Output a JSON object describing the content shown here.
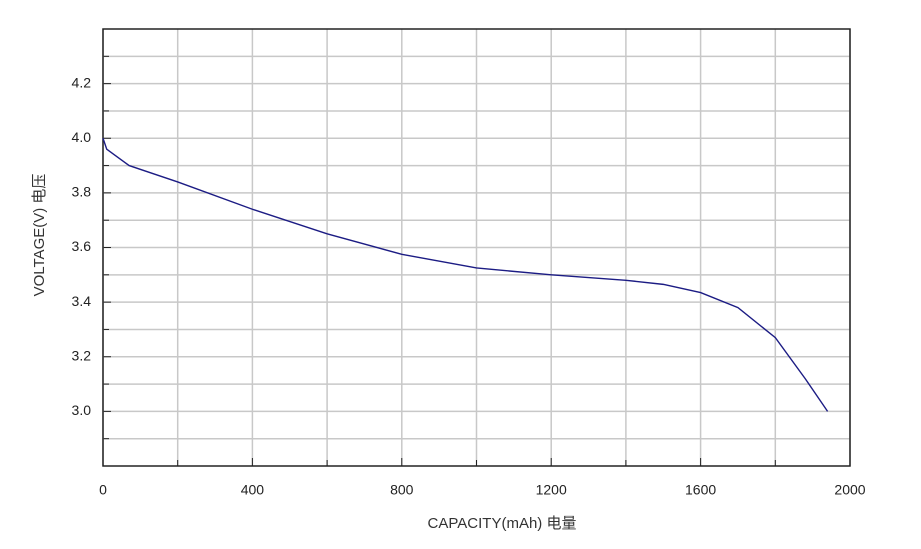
{
  "chart_data": {
    "type": "line",
    "xlabel": "CAPACITY(mAh)  电量",
    "ylabel": "VOLTAGE(V)  电压",
    "x": [
      0,
      10,
      30,
      70,
      200,
      400,
      600,
      800,
      1000,
      1200,
      1400,
      1500,
      1600,
      1700,
      1800,
      1880,
      1940
    ],
    "series": [
      {
        "color": "#1c1c84",
        "values": [
          4.0,
          3.96,
          3.94,
          3.9,
          3.84,
          3.74,
          3.65,
          3.575,
          3.525,
          3.5,
          3.48,
          3.465,
          3.435,
          3.38,
          3.27,
          3.12,
          3.0
        ]
      }
    ],
    "xlim": [
      0,
      2000
    ],
    "xticks": [
      0,
      400,
      800,
      1200,
      1600,
      2000
    ],
    "xminor": [
      200,
      600,
      1000,
      1400,
      1800
    ],
    "ylim": [
      2.8,
      4.4
    ],
    "yticks": [
      {
        "value": 3,
        "label": "3.0"
      },
      {
        "value": 3.2,
        "label": "3.2"
      },
      {
        "value": 3.4,
        "label": "3.4"
      },
      {
        "value": 3.6,
        "label": "3.6"
      },
      {
        "value": 3.8,
        "label": "3.8"
      },
      {
        "value": 4,
        "label": "4.0"
      },
      {
        "value": 4.2,
        "label": "4.2"
      }
    ],
    "yminor": [
      2.9,
      3.1,
      3.3,
      3.5,
      3.7,
      3.9,
      4.1,
      4.3
    ],
    "grid": true
  }
}
